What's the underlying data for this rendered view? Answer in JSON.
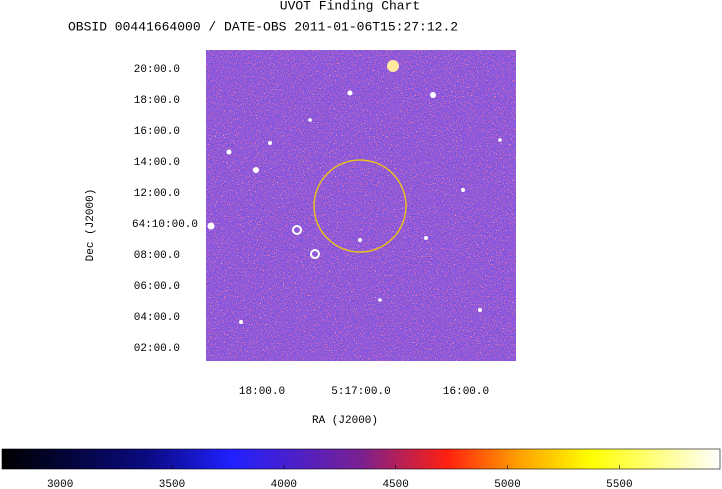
{
  "chart_data": {
    "type": "image",
    "title": "UVOT Finding Chart",
    "subtitle": "OBSID 00441664000 / DATE-OBS 2011-01-06T15:27:12.2",
    "x_label": "RA (J2000)",
    "y_label": "Dec (J2000)",
    "xticks": [
      "18:00.0",
      "5:17:00.0",
      "16:00.0"
    ],
    "yticks": [
      "02:00.0",
      "04:00.0",
      "06:00.0",
      "08:00.0",
      "64:10:00.0",
      "12:00.0",
      "14:00.0",
      "16:00.0",
      "18:00.0",
      "20:00.0"
    ],
    "colorbar": {
      "lim": [
        2740,
        5950
      ],
      "ticks": [
        3000,
        3500,
        4000,
        4500,
        5000,
        5500
      ]
    }
  }
}
